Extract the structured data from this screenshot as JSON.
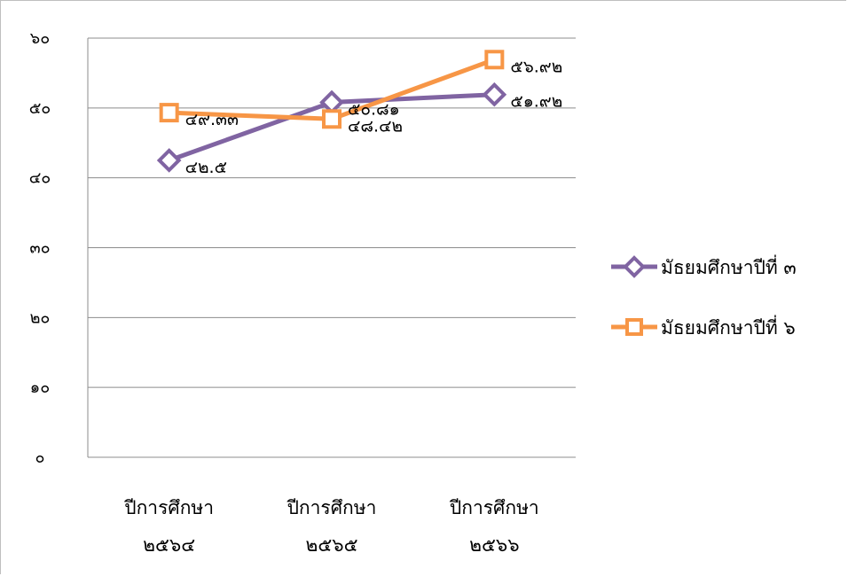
{
  "chart_data": {
    "type": "line",
    "title": "",
    "xlabel": "",
    "ylabel": "",
    "ylim": [
      0,
      60
    ],
    "yticks": [
      0,
      10,
      20,
      30,
      40,
      50,
      60
    ],
    "ytick_labels": [
      "๐",
      "๑๐",
      "๒๐",
      "๓๐",
      "๔๐",
      "๕๐",
      "๖๐"
    ],
    "grid": true,
    "legend_position": "right",
    "categories": [
      [
        "ปีการศึกษา",
        "๒๕๖๔"
      ],
      [
        "ปีการศึกษา",
        "๒๕๖๕"
      ],
      [
        "ปีการศึกษา",
        "๒๕๖๖"
      ]
    ],
    "series": [
      {
        "name": "มัธยมศึกษาปีที่ ๓",
        "values": [
          42.5,
          50.81,
          51.92
        ],
        "labels": [
          "๔๒.๕",
          "๕๐.๘๑",
          "๕๑.๙๒"
        ],
        "marker": "diamond",
        "color": "#8064a2"
      },
      {
        "name": "มัธยมศึกษาปีที่ ๖",
        "values": [
          49.33,
          48.42,
          56.92
        ],
        "labels": [
          "๔๙.๓๓",
          "๔๘.๔๒",
          "๕๖.๙๒"
        ],
        "marker": "square",
        "color": "#f79646"
      }
    ]
  }
}
